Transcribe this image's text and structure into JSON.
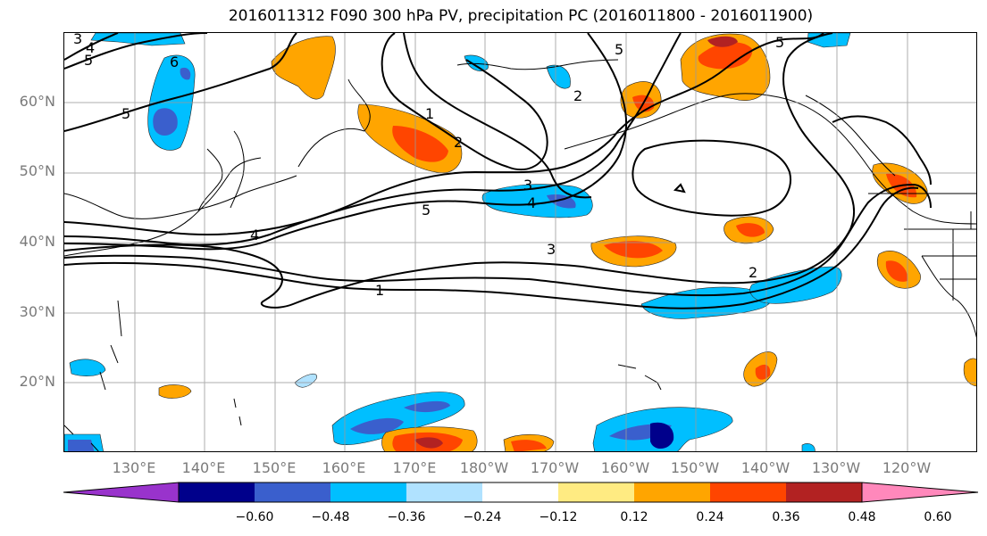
{
  "title": "2016011312 F090 300 hPa PV, precipitation PC (2016011800 - 2016011900)",
  "lat_labels": [
    "60°N",
    "50°N",
    "40°N",
    "30°N",
    "20°N"
  ],
  "lon_labels": [
    "130°E",
    "140°E",
    "150°E",
    "160°E",
    "170°E",
    "180°W",
    "170°W",
    "160°W",
    "150°W",
    "140°W",
    "130°W",
    "120°W"
  ],
  "contour_labels": [
    "3",
    "4",
    "5",
    "6",
    "5",
    "1",
    "2",
    "3",
    "4",
    "5",
    "4",
    "3",
    "1",
    "5",
    "2",
    "5",
    "2"
  ],
  "colorbar": {
    "ticks": [
      "−0.60",
      "−0.48",
      "−0.36",
      "−0.24",
      "−0.12",
      "0.12",
      "0.24",
      "0.36",
      "0.48",
      "0.60"
    ],
    "colors": [
      "#9933cc",
      "#00008b",
      "#3a5fcd",
      "#00bfff",
      "#b0e2ff",
      "#ffffff",
      "#ffeb82",
      "#ffa500",
      "#ff4500",
      "#b22222",
      "#ff88bb"
    ]
  }
}
